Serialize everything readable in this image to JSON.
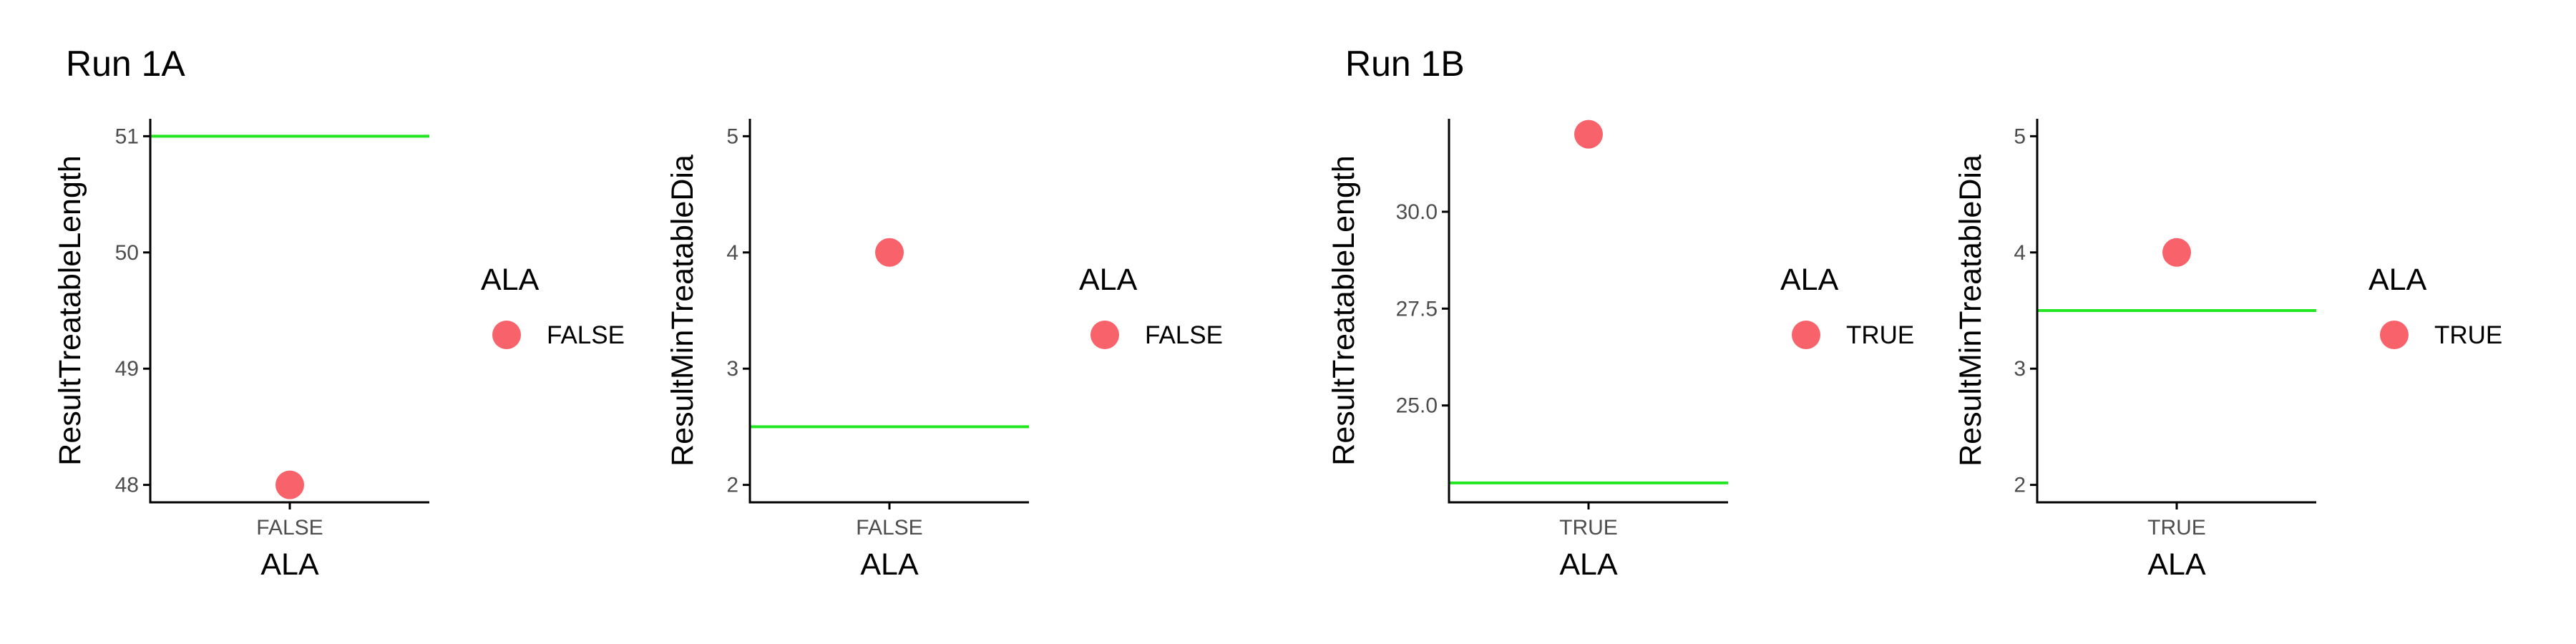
{
  "groups": [
    {
      "title": "Run 1A"
    },
    {
      "title": "Run 1B"
    }
  ],
  "colors": {
    "point": "#f8626b",
    "threshold_line": "#22e622",
    "axis": "#000000",
    "tick_label": "#4d4d4d",
    "text": "#000000"
  },
  "chart_data": [
    {
      "type": "scatter",
      "group": "Run 1A",
      "xlabel": "ALA",
      "ylabel": "ResultTreatableLength",
      "categories": [
        "FALSE"
      ],
      "ylim": [
        47.85,
        51.15
      ],
      "yticks": [
        48,
        49,
        50,
        51
      ],
      "ytick_labels": [
        "48",
        "49",
        "50",
        "51"
      ],
      "series": [
        {
          "name": "FALSE",
          "points": [
            {
              "x": "FALSE",
              "y": 48
            }
          ]
        }
      ],
      "hline": 51,
      "legend": {
        "title": "ALA",
        "entries": [
          "FALSE"
        ],
        "position": "right"
      },
      "grid": false
    },
    {
      "type": "scatter",
      "group": "Run 1A",
      "xlabel": "ALA",
      "ylabel": "ResultMinTreatableDia",
      "categories": [
        "FALSE"
      ],
      "ylim": [
        1.85,
        5.15
      ],
      "yticks": [
        2,
        3,
        4,
        5
      ],
      "ytick_labels": [
        "2",
        "3",
        "4",
        "5"
      ],
      "series": [
        {
          "name": "FALSE",
          "points": [
            {
              "x": "FALSE",
              "y": 4
            }
          ]
        }
      ],
      "hline": 2.5,
      "legend": {
        "title": "ALA",
        "entries": [
          "FALSE"
        ],
        "position": "right"
      },
      "grid": false
    },
    {
      "type": "scatter",
      "group": "Run 1B",
      "xlabel": "ALA",
      "ylabel": "ResultTreatableLength",
      "categories": [
        "TRUE"
      ],
      "ylim": [
        22.5,
        32.4
      ],
      "yticks": [
        25,
        27.5,
        30
      ],
      "ytick_labels": [
        "25.0",
        "27.5",
        "30.0"
      ],
      "series": [
        {
          "name": "TRUE",
          "points": [
            {
              "x": "TRUE",
              "y": 32
            }
          ]
        }
      ],
      "hline": 23,
      "legend": {
        "title": "ALA",
        "entries": [
          "TRUE"
        ],
        "position": "right"
      },
      "grid": false
    },
    {
      "type": "scatter",
      "group": "Run 1B",
      "xlabel": "ALA",
      "ylabel": "ResultMinTreatableDia",
      "categories": [
        "TRUE"
      ],
      "ylim": [
        1.85,
        5.15
      ],
      "yticks": [
        2,
        3,
        4,
        5
      ],
      "ytick_labels": [
        "2",
        "3",
        "4",
        "5"
      ],
      "series": [
        {
          "name": "TRUE",
          "points": [
            {
              "x": "TRUE",
              "y": 4
            }
          ]
        }
      ],
      "hline": 3.5,
      "legend": {
        "title": "ALA",
        "entries": [
          "TRUE"
        ],
        "position": "right"
      },
      "grid": false
    }
  ]
}
